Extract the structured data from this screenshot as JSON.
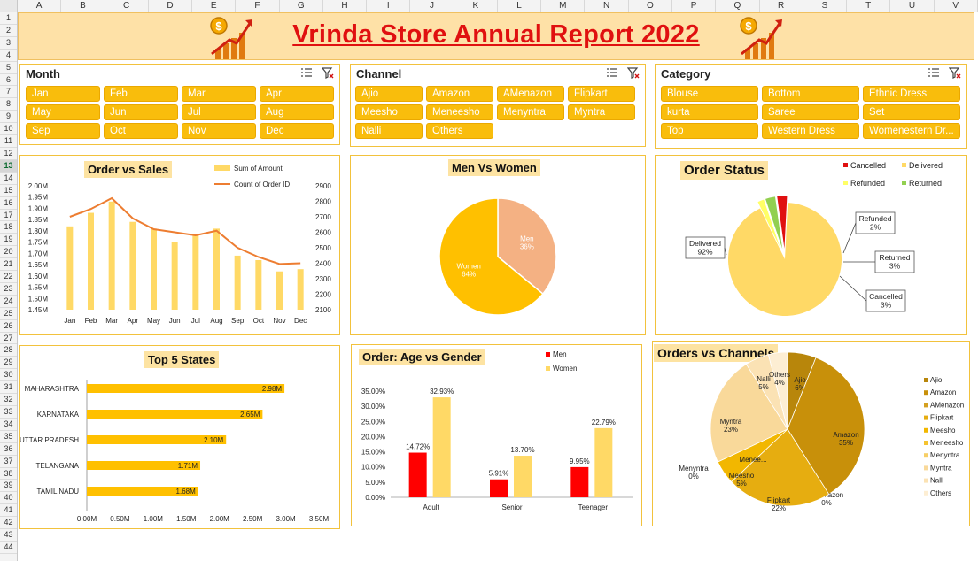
{
  "columns": [
    "A",
    "B",
    "C",
    "D",
    "E",
    "F",
    "G",
    "H",
    "I",
    "J",
    "K",
    "L",
    "M",
    "N",
    "O",
    "P",
    "Q",
    "R",
    "S",
    "T",
    "U",
    "V"
  ],
  "rows": [
    "1",
    "2",
    "3",
    "4",
    "5",
    "6",
    "7",
    "8",
    "9",
    "10",
    "11",
    "12",
    "13",
    "14",
    "15",
    "16",
    "17",
    "18",
    "19",
    "20",
    "21",
    "22",
    "23",
    "24",
    "25",
    "26",
    "27",
    "28",
    "29",
    "30",
    "31",
    "32",
    "33",
    "34",
    "35",
    "36",
    "37",
    "38",
    "39",
    "40",
    "41",
    "42",
    "43",
    "44"
  ],
  "selected_row": "13",
  "title": "Vrinda Store Annual Report 2022",
  "slicers": {
    "month": {
      "title": "Month",
      "items": [
        "Jan",
        "Feb",
        "Mar",
        "Apr",
        "May",
        "Jun",
        "Jul",
        "Aug",
        "Sep",
        "Oct",
        "Nov",
        "Dec"
      ]
    },
    "channel": {
      "title": "Channel",
      "items": [
        "Ajio",
        "Amazon",
        "AMenazon",
        "Flipkart",
        "Meesho",
        "Meneesho",
        "Menyntra",
        "Myntra",
        "Nalli",
        "Others"
      ]
    },
    "category": {
      "title": "Category",
      "items": [
        "Blouse",
        "Bottom",
        "Ethnic Dress",
        "kurta",
        "Saree",
        "Set",
        "Top",
        "Western Dress",
        "Womenestern Dr..."
      ]
    }
  },
  "colors": {
    "accent": "#f9bd0c",
    "title_red": "#e01010",
    "banner": "#fee1a7",
    "bar_light": "#ffd966",
    "line": "#ed7d31",
    "men": "#ff0000",
    "women": "#ffd966"
  },
  "charts": {
    "order_sales": {
      "title": "Order vs Sales",
      "legend": [
        "Sum of Amount",
        "Count of Order ID"
      ],
      "left_ticks": [
        "2.00M",
        "1.95M",
        "1.90M",
        "1.85M",
        "1.80M",
        "1.75M",
        "1.70M",
        "1.65M",
        "1.60M",
        "1.55M",
        "1.50M",
        "1.45M"
      ],
      "right_ticks": [
        "2900",
        "2800",
        "2700",
        "2600",
        "2500",
        "2400",
        "2300",
        "2200",
        "2100"
      ]
    },
    "men_women": {
      "title": "Men Vs Women"
    },
    "order_status": {
      "title": "Order Status",
      "labels": {
        "delivered": [
          "Delivered",
          "92%"
        ],
        "refunded": [
          "Refunded",
          "2%"
        ],
        "returned": [
          "Returned",
          "3%"
        ],
        "cancelled": [
          "Cancelled",
          "3%"
        ]
      }
    },
    "top_states": {
      "title": "Top 5 States",
      "x_ticks": [
        "0.00M",
        "0.50M",
        "1.00M",
        "1.50M",
        "2.00M",
        "2.50M",
        "3.00M",
        "3.50M"
      ]
    },
    "age_gender": {
      "title": "Order: Age vs Gender",
      "y_ticks": [
        "35.00%",
        "30.00%",
        "25.00%",
        "20.00%",
        "15.00%",
        "10.00%",
        "5.00%",
        "0.00%"
      ]
    },
    "orders_channels": {
      "title": "Orders vs Channels"
    }
  },
  "chart_data": [
    {
      "type": "bar",
      "title": "Order vs Sales",
      "categories": [
        "Jan",
        "Feb",
        "Mar",
        "Apr",
        "May",
        "Jun",
        "Jul",
        "Aug",
        "Sep",
        "Oct",
        "Nov",
        "Dec"
      ],
      "series": [
        {
          "name": "Sum of Amount",
          "axis": "left",
          "values": [
            1.82,
            1.88,
            1.93,
            1.84,
            1.81,
            1.75,
            1.78,
            1.81,
            1.69,
            1.67,
            1.62,
            1.63
          ]
        },
        {
          "name": "Count of Order ID",
          "type": "line",
          "axis": "right",
          "values": [
            2700,
            2750,
            2820,
            2690,
            2620,
            2600,
            2580,
            2610,
            2500,
            2440,
            2395,
            2400
          ]
        }
      ],
      "ylim": [
        1.45,
        2.0
      ],
      "y2lim": [
        2100,
        2900
      ],
      "legend": "top-right"
    },
    {
      "type": "pie",
      "title": "Men Vs Women",
      "categories": [
        "Women",
        "Men"
      ],
      "values": [
        64,
        36
      ],
      "labels": [
        "64%",
        "36%"
      ],
      "colors": [
        "#ffc000",
        "#f4b183"
      ]
    },
    {
      "type": "pie",
      "title": "Order Status",
      "categories": [
        "Delivered",
        "Refunded",
        "Returned",
        "Cancelled"
      ],
      "values": [
        92,
        2,
        3,
        3
      ],
      "legend_order": [
        "Cancelled",
        "Delivered",
        "Refunded",
        "Returned"
      ],
      "colors": [
        "#ffd966",
        "#ffff66",
        "#92d050",
        "#e01010"
      ],
      "legend": "top-right"
    },
    {
      "type": "bar",
      "orientation": "horizontal",
      "title": "Top 5 States",
      "categories": [
        "MAHARASHTRA",
        "KARNATAKA",
        "UTTAR PRADESH",
        "TELANGANA",
        "TAMIL NADU"
      ],
      "values": [
        2.98,
        2.65,
        2.1,
        1.71,
        1.68
      ],
      "labels": [
        "2.98M",
        "2.65M",
        "2.10M",
        "1.71M",
        "1.68M"
      ],
      "xlim": [
        0,
        3.5
      ]
    },
    {
      "type": "bar",
      "title": "Order: Age vs Gender",
      "categories": [
        "Adult",
        "Senior",
        "Teenager"
      ],
      "series": [
        {
          "name": "Men",
          "values": [
            14.72,
            5.91,
            9.95
          ],
          "labels": [
            "14.72%",
            "5.91%",
            "9.95%"
          ]
        },
        {
          "name": "Women",
          "values": [
            32.93,
            13.7,
            22.79
          ],
          "labels": [
            "32.93%",
            "13.70%",
            "22.79%"
          ]
        }
      ],
      "ylim": [
        0,
        35
      ],
      "legend": "top-right"
    },
    {
      "type": "pie",
      "title": "Orders vs Channels",
      "categories": [
        "Ajio",
        "Amazon",
        "AMenazon",
        "Flipkart",
        "Meesho",
        "Meneesho",
        "Menyntra",
        "Myntra",
        "Nalli",
        "Others"
      ],
      "values": [
        6,
        35,
        0,
        22,
        5,
        0,
        0,
        23,
        5,
        4
      ],
      "labels": [
        "Ajio\n6%",
        "Amazon\n35%",
        "AMenazon\n0%",
        "Flipkart\n22%",
        "Meesho\n5%",
        "Menee...",
        "Menyntra\n0%",
        "Myntra\n23%",
        "Nalli\n5%",
        "Others\n4%"
      ],
      "colors": [
        "#b8860b",
        "#c8900a",
        "#d4a020",
        "#e6ad10",
        "#f2b700",
        "#f5c330",
        "#f7cf66",
        "#f9d99a",
        "#fbe2b4",
        "#fdeed3"
      ],
      "legend": "right"
    }
  ]
}
